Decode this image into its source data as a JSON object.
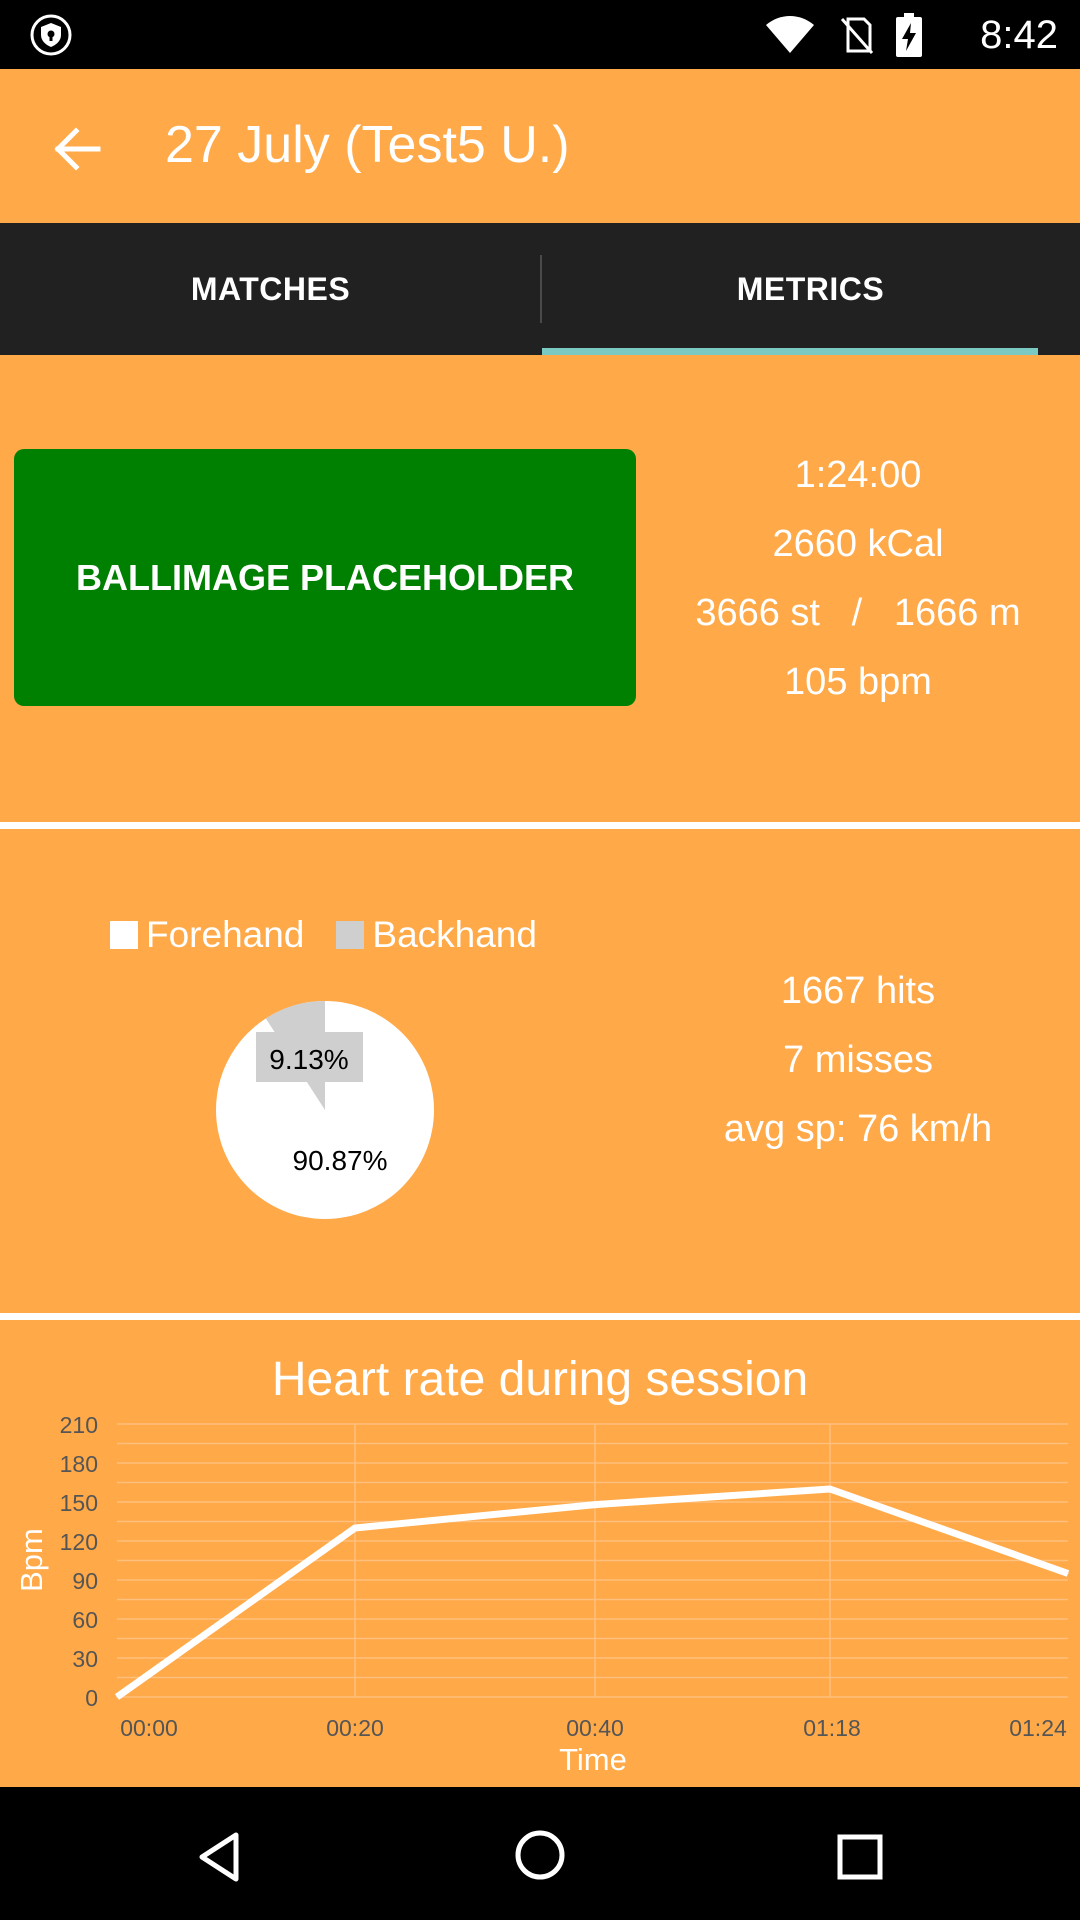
{
  "status_bar": {
    "time": "8:42",
    "icons": [
      "shield-icon",
      "wifi-icon",
      "no-sim-icon",
      "battery-charging-icon"
    ]
  },
  "app_bar": {
    "back_icon": "arrow-left-icon",
    "title": "27 July (Test5 U.)"
  },
  "tabs": [
    {
      "label": "MATCHES",
      "selected": false
    },
    {
      "label": "METRICS",
      "selected": true
    }
  ],
  "summary": {
    "placeholder_label": "BALLIMAGE PLACEHOLDER",
    "duration": "1:24:00",
    "calories": "2660 kCal",
    "steps_distance": "3666 st   /   1666 m",
    "heart_rate": "105 bpm"
  },
  "strokes": {
    "legend": [
      {
        "label": "Forehand",
        "color": "#FFFFFF"
      },
      {
        "label": "Backhand",
        "color": "#CFCFCF"
      }
    ],
    "hits": "1667 hits",
    "misses": "7 misses",
    "avg_speed": "avg sp: 76 km/h"
  },
  "chart_data": [
    {
      "type": "pie",
      "labels": [
        "Forehand",
        "Backhand"
      ],
      "values": [
        90.87,
        9.13
      ],
      "value_labels": [
        "90.87%",
        "9.13%"
      ],
      "colors": [
        "#FFFFFF",
        "#CFCFCF"
      ]
    },
    {
      "type": "line",
      "title": "Heart rate during session",
      "xlabel": "Time",
      "ylabel": "Bpm",
      "x": [
        "00:00",
        "00:20",
        "00:40",
        "01:18",
        "01:24"
      ],
      "series": [
        {
          "values": [
            0,
            130,
            148,
            160,
            95
          ]
        }
      ],
      "yticks": [
        0,
        30,
        60,
        90,
        120,
        150,
        180,
        210
      ],
      "ylim": [
        0,
        210
      ],
      "grid": true,
      "line_color": "#FFFFFF"
    }
  ],
  "nav_bar": {
    "icons": [
      "back-triangle-icon",
      "home-circle-icon",
      "recents-square-icon"
    ]
  }
}
